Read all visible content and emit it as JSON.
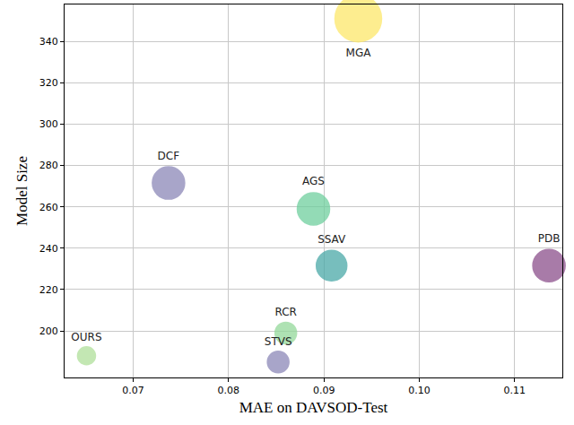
{
  "chart_data": {
    "type": "bubble",
    "x_label": "MAE on DAVSOD-Test",
    "y_label": "Model Size",
    "labels": [
      "OURS",
      "DCF",
      "AGS",
      "SSAV",
      "PDB",
      "RCR",
      "STVS",
      "MGA"
    ],
    "x": [
      0.0651,
      0.0737,
      0.0889,
      0.0908,
      0.1136,
      0.086,
      0.0852,
      0.0936
    ],
    "y": [
      188,
      271.5,
      259,
      231.6,
      231.6,
      199,
      185,
      351
    ],
    "sizes": [
      20,
      36,
      36,
      34,
      36,
      24,
      24,
      52
    ],
    "colors": [
      "#b0e09a",
      "#8c88b8",
      "#6fcf9e",
      "#4aa9a8",
      "#8c4f8c",
      "#94d99a",
      "#8c88b8",
      "#fde86a"
    ],
    "xlim": [
      0.0628,
      0.115
    ],
    "xticks": [
      {
        "value": 0.07,
        "label": "0.07"
      },
      {
        "value": 0.08,
        "label": "0.08"
      },
      {
        "value": 0.09,
        "label": "0.09"
      },
      {
        "value": 0.1,
        "label": "0.10"
      },
      {
        "value": 0.11,
        "label": "0.11"
      }
    ],
    "ylim": [
      177.5,
      357.8
    ],
    "yticks": [
      200,
      220,
      240,
      260,
      280,
      300,
      320,
      340
    ],
    "grid": true
  }
}
